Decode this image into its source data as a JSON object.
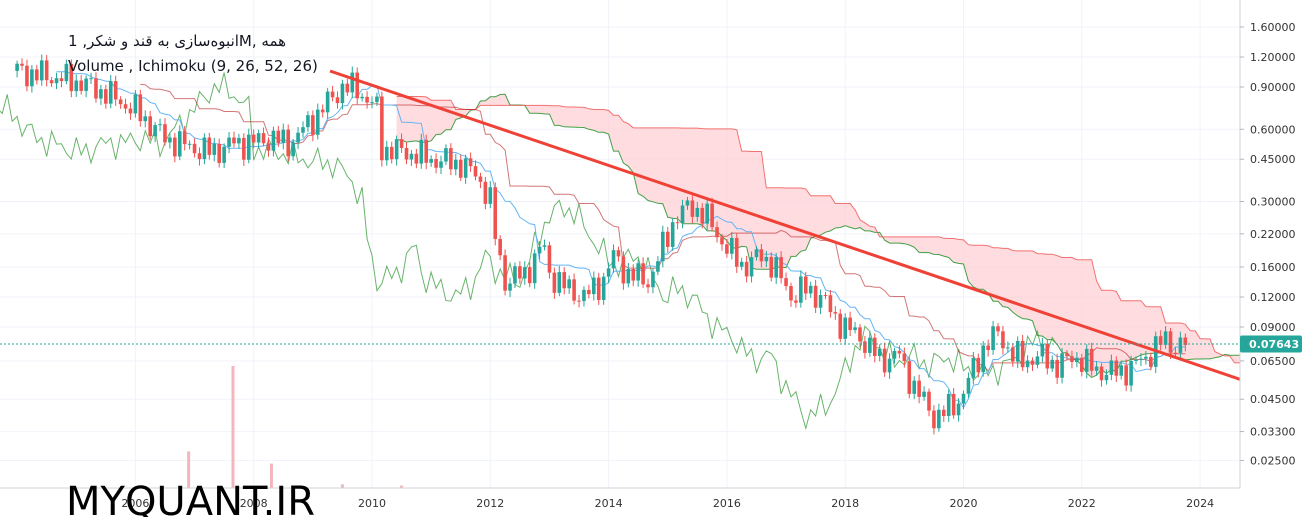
{
  "header": {
    "symbol_line": "انبوه‌سازی به قند و شکر, 1M, همه",
    "indicators_line": "Volume , Ichimoku (9, 26, 52, 26)"
  },
  "watermark": "MYQUANT.IR",
  "colors": {
    "up": "#26a69a",
    "down": "#ef5350",
    "tenkan": "#64b5f6",
    "kijun": "#b71c1c",
    "chikou": "#43a047",
    "cloud": "#ffcdd2",
    "trendline": "#ef4136",
    "last_price": "#26a69a",
    "volume": "#f4b6bd"
  },
  "chart_data": {
    "type": "candlestick",
    "scale": "log",
    "ylim": [
      0.022,
      1.8
    ],
    "y_ticks": [
      "1.60000",
      "1.20000",
      "0.90000",
      "0.60000",
      "0.45000",
      "0.30000",
      "0.22000",
      "0.16000",
      "0.12000",
      "0.09000",
      "0.06500",
      "0.04500",
      "0.03300",
      "0.02500"
    ],
    "x_ticks": [
      "2006",
      "2008",
      "2010",
      "2012",
      "2014",
      "2016",
      "2018",
      "2020",
      "2022",
      "2024"
    ],
    "last_price": "0.07643",
    "close_path": [
      [
        2004.0,
        1.05
      ],
      [
        2004.5,
        1.0
      ],
      [
        2005.0,
        0.95
      ],
      [
        2005.5,
        0.85
      ],
      [
        2006.0,
        0.72
      ],
      [
        2006.5,
        0.55
      ],
      [
        2007.0,
        0.5
      ],
      [
        2007.3,
        0.48
      ],
      [
        2007.6,
        0.52
      ],
      [
        2008.0,
        0.53
      ],
      [
        2008.3,
        0.55
      ],
      [
        2008.6,
        0.52
      ],
      [
        2008.9,
        0.62
      ],
      [
        2009.2,
        0.75
      ],
      [
        2009.5,
        0.9
      ],
      [
        2009.75,
        0.88
      ],
      [
        2010.1,
        0.72
      ],
      [
        2010.15,
        0.5
      ],
      [
        2010.6,
        0.48
      ],
      [
        2011.0,
        0.45
      ],
      [
        2011.5,
        0.43
      ],
      [
        2011.8,
        0.38
      ],
      [
        2012.0,
        0.3
      ],
      [
        2012.1,
        0.2
      ],
      [
        2012.25,
        0.14
      ],
      [
        2012.6,
        0.15
      ],
      [
        2012.9,
        0.2
      ],
      [
        2013.0,
        0.15
      ],
      [
        2013.3,
        0.13
      ],
      [
        2013.6,
        0.12
      ],
      [
        2013.9,
        0.14
      ],
      [
        2014.1,
        0.18
      ],
      [
        2014.3,
        0.15
      ],
      [
        2014.7,
        0.14
      ],
      [
        2014.9,
        0.19
      ],
      [
        2015.1,
        0.25
      ],
      [
        2015.4,
        0.29
      ],
      [
        2015.7,
        0.25
      ],
      [
        2016.0,
        0.19
      ],
      [
        2016.3,
        0.16
      ],
      [
        2016.6,
        0.18
      ],
      [
        2016.8,
        0.16
      ],
      [
        2017.1,
        0.12
      ],
      [
        2017.3,
        0.13
      ],
      [
        2017.6,
        0.12
      ],
      [
        2017.8,
        0.1
      ],
      [
        2018.0,
        0.09
      ],
      [
        2018.3,
        0.08
      ],
      [
        2018.6,
        0.065
      ],
      [
        2018.9,
        0.07
      ],
      [
        2019.0,
        0.06
      ],
      [
        2019.3,
        0.045
      ],
      [
        2019.5,
        0.038
      ],
      [
        2019.7,
        0.04
      ],
      [
        2019.95,
        0.045
      ],
      [
        2020.1,
        0.055
      ],
      [
        2020.35,
        0.075
      ],
      [
        2020.6,
        0.085
      ],
      [
        2020.8,
        0.07
      ],
      [
        2021.0,
        0.065
      ],
      [
        2021.3,
        0.068
      ],
      [
        2021.6,
        0.062
      ],
      [
        2021.9,
        0.068
      ],
      [
        2022.2,
        0.06
      ],
      [
        2022.5,
        0.058
      ],
      [
        2022.8,
        0.06
      ],
      [
        2023.1,
        0.068
      ],
      [
        2023.4,
        0.08
      ],
      [
        2023.6,
        0.074
      ],
      [
        2023.75,
        0.07643
      ]
    ],
    "volume_bars": [
      {
        "x": 2006.9,
        "v": 0.3
      },
      {
        "x": 2007.65,
        "v": 1.0
      },
      {
        "x": 2008.3,
        "v": 0.2
      },
      {
        "x": 2009.5,
        "v": 0.03
      },
      {
        "x": 2010.5,
        "v": 0.02
      }
    ]
  }
}
